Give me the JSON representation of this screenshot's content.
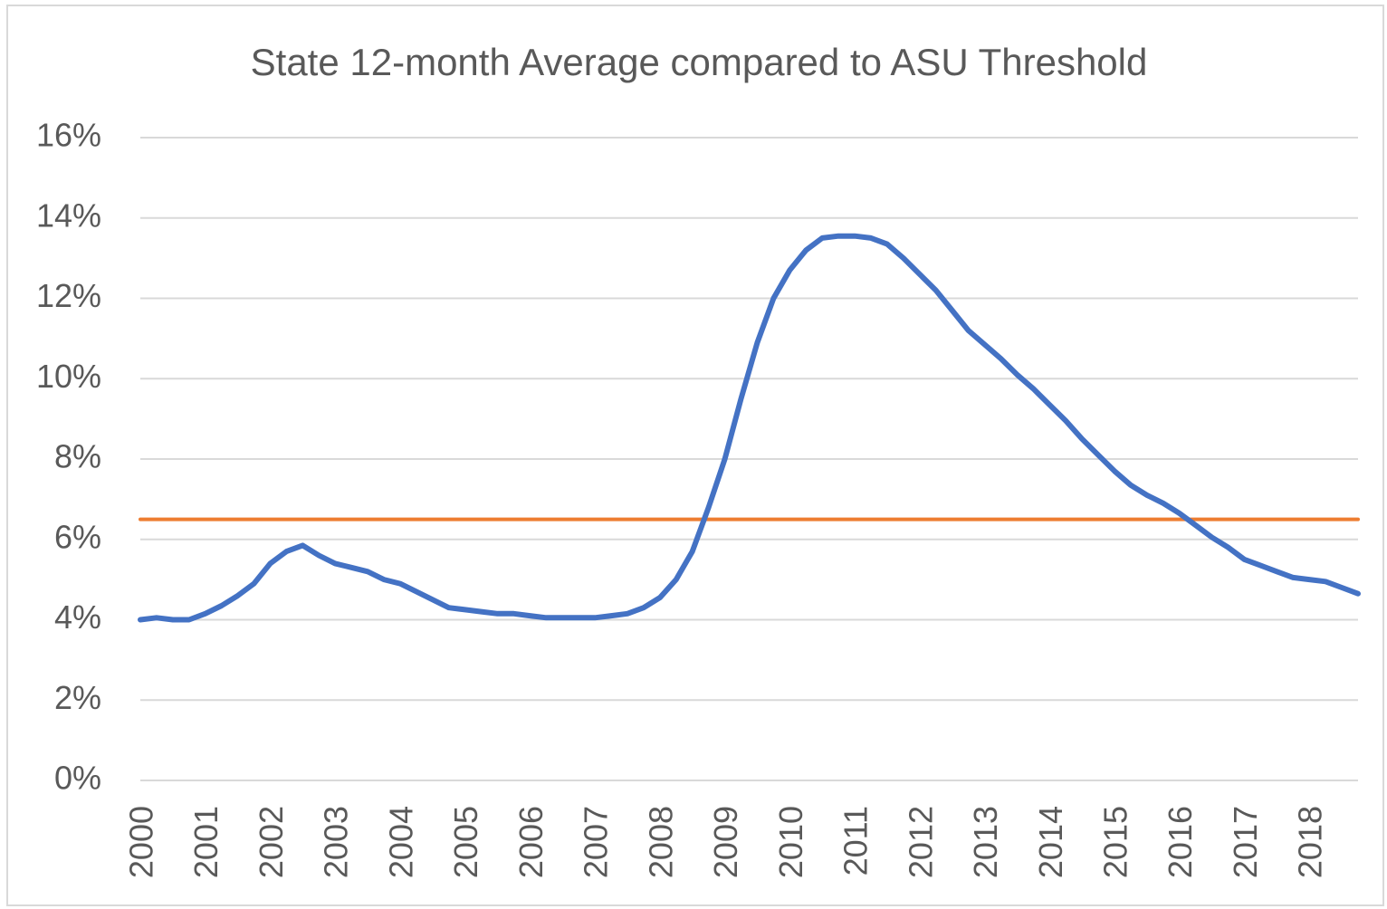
{
  "chart_data": {
    "type": "line",
    "title": "State 12-month Average compared to ASU Threshold",
    "categories": [
      "2000",
      null,
      null,
      null,
      "2001",
      null,
      null,
      null,
      "2002",
      null,
      null,
      null,
      "2003",
      null,
      null,
      null,
      "2004",
      null,
      null,
      null,
      "2005",
      null,
      null,
      null,
      "2006",
      null,
      null,
      null,
      "2007",
      null,
      null,
      null,
      "2008",
      null,
      null,
      null,
      "2009",
      null,
      null,
      null,
      "2010",
      null,
      null,
      null,
      "2011",
      null,
      null,
      null,
      "2012",
      null,
      null,
      null,
      "2013",
      null,
      null,
      null,
      "2014",
      null,
      null,
      null,
      "2015",
      null,
      null,
      null,
      "2016",
      null,
      null,
      null,
      "2017",
      null,
      null,
      null,
      "2018",
      null,
      null,
      null
    ],
    "series": [
      {
        "color": "#4472c4",
        "values": [
          4.0,
          4.05,
          4.0,
          4.0,
          4.15,
          4.35,
          4.6,
          4.9,
          5.4,
          5.7,
          5.85,
          5.6,
          5.4,
          5.3,
          5.2,
          5.0,
          4.9,
          4.7,
          4.5,
          4.3,
          4.25,
          4.2,
          4.15,
          4.15,
          4.1,
          4.05,
          4.05,
          4.05,
          4.05,
          4.1,
          4.15,
          4.3,
          4.55,
          5.0,
          5.7,
          6.8,
          8.0,
          9.5,
          10.9,
          12.0,
          12.7,
          13.2,
          13.5,
          13.55,
          13.55,
          13.5,
          13.35,
          13.0,
          12.6,
          12.2,
          11.7,
          11.2,
          10.85,
          10.5,
          10.1,
          9.75,
          9.35,
          8.95,
          8.5,
          8.1,
          7.7,
          7.35,
          7.1,
          6.9,
          6.65,
          6.35,
          6.05,
          5.8,
          5.5,
          5.35,
          5.2,
          5.05,
          5.0,
          4.95,
          4.8,
          4.65
        ]
      },
      {
        "color": "#ed7d31",
        "values": [
          6.5,
          6.5,
          6.5,
          6.5,
          6.5,
          6.5,
          6.5,
          6.5,
          6.5,
          6.5,
          6.5,
          6.5,
          6.5,
          6.5,
          6.5,
          6.5,
          6.5,
          6.5,
          6.5,
          6.5,
          6.5,
          6.5,
          6.5,
          6.5,
          6.5,
          6.5,
          6.5,
          6.5,
          6.5,
          6.5,
          6.5,
          6.5,
          6.5,
          6.5,
          6.5,
          6.5,
          6.5,
          6.5,
          6.5,
          6.5,
          6.5,
          6.5,
          6.5,
          6.5,
          6.5,
          6.5,
          6.5,
          6.5,
          6.5,
          6.5,
          6.5,
          6.5,
          6.5,
          6.5,
          6.5,
          6.5,
          6.5,
          6.5,
          6.5,
          6.5,
          6.5,
          6.5,
          6.5,
          6.5,
          6.5,
          6.5,
          6.5,
          6.5,
          6.5,
          6.5,
          6.5,
          6.5,
          6.5,
          6.5,
          6.5,
          6.5
        ]
      }
    ],
    "ylim": [
      0,
      16
    ],
    "yticks": [
      {
        "value": 0,
        "label": "0%"
      },
      {
        "value": 2,
        "label": "2%"
      },
      {
        "value": 4,
        "label": "4%"
      },
      {
        "value": 6,
        "label": "6%"
      },
      {
        "value": 8,
        "label": "8%"
      },
      {
        "value": 10,
        "label": "10%"
      },
      {
        "value": 12,
        "label": "12%"
      },
      {
        "value": 14,
        "label": "14%"
      },
      {
        "value": 16,
        "label": "16%"
      }
    ],
    "grid": true
  }
}
